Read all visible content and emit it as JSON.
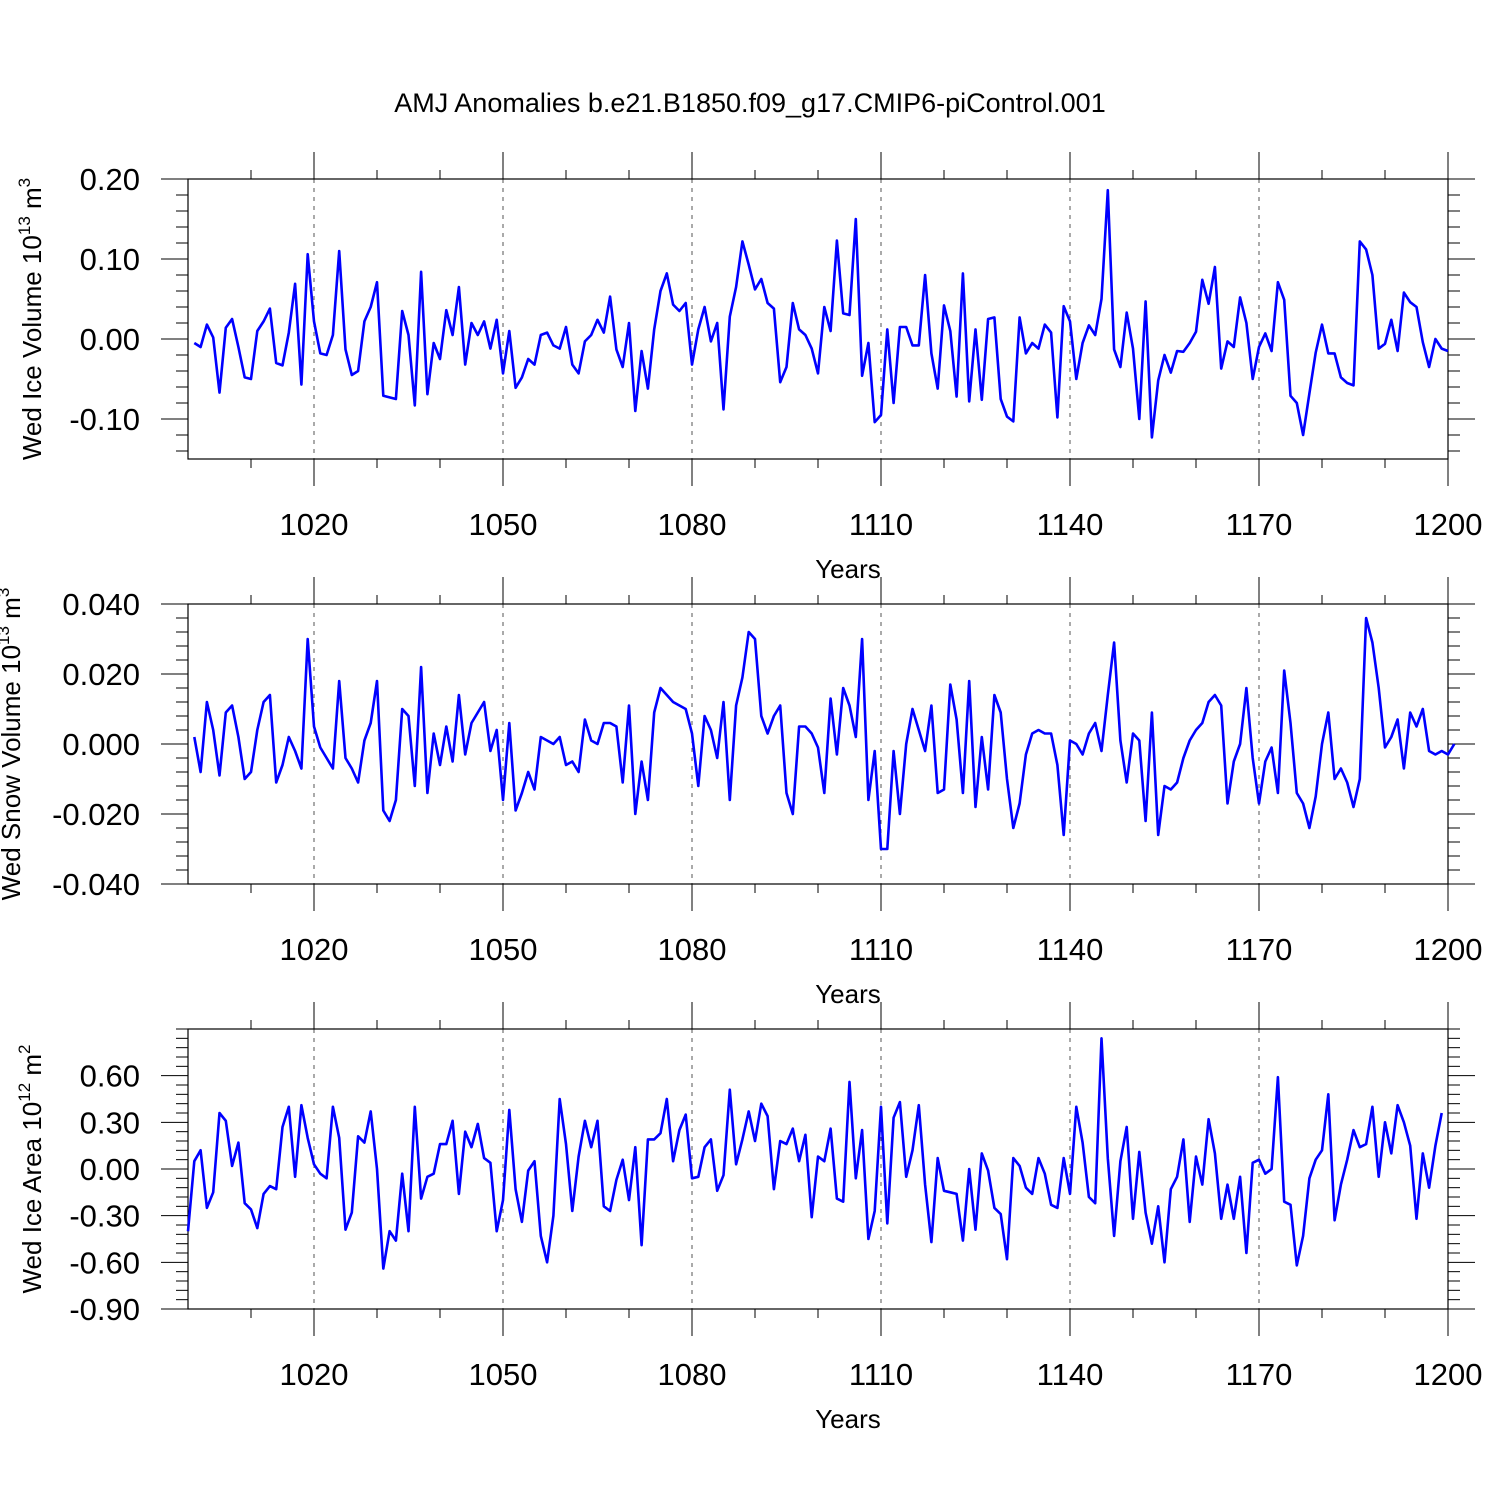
{
  "title": "AMJ Anomalies b.e21.B1850.f09_g17.CMIP6-piControl.001",
  "colors": {
    "line": "#0000ff",
    "axis": "#000000",
    "grid": "#555555"
  },
  "chart_data": [
    {
      "type": "line",
      "ylabel_main": "Wed Ice Volume 10",
      "ylabel_sup": "13",
      "ylabel_unit": " m",
      "ylabel_unit_sup": "3",
      "xlabel": "Years",
      "xlim": [
        1000,
        1200
      ],
      "ylim": [
        -0.15,
        0.2
      ],
      "xticks": [
        1020,
        1050,
        1080,
        1110,
        1140,
        1170,
        1200
      ],
      "xtick_labels": [
        "1020",
        "1050",
        "1080",
        "1110",
        "1140",
        "1170",
        "1200"
      ],
      "yticks": [
        -0.1,
        0.0,
        0.1,
        0.2
      ],
      "ytick_labels": [
        "-0.10",
        "0.00",
        "0.10",
        "0.20"
      ],
      "series": [
        {
          "name": "Wed Ice Volume",
          "x_start": 1001,
          "values": [
            -0.005,
            -0.01,
            0.018,
            0.002,
            -0.067,
            0.014,
            0.025,
            -0.01,
            -0.048,
            -0.05,
            0.01,
            0.022,
            0.038,
            -0.03,
            -0.033,
            0.008,
            0.069,
            -0.057,
            0.106,
            0.022,
            -0.018,
            -0.02,
            0.005,
            0.11,
            -0.013,
            -0.045,
            -0.04,
            0.022,
            0.04,
            0.071,
            -0.071,
            -0.073,
            -0.075,
            0.035,
            0.005,
            -0.083,
            0.084,
            -0.069,
            -0.005,
            -0.025,
            0.036,
            0.005,
            0.065,
            -0.032,
            0.02,
            0.005,
            0.022,
            -0.012,
            0.024,
            -0.043,
            0.01,
            -0.061,
            -0.048,
            -0.025,
            -0.032,
            0.005,
            0.008,
            -0.008,
            -0.012,
            0.015,
            -0.032,
            -0.043,
            -0.003,
            0.005,
            0.024,
            0.008,
            0.053,
            -0.013,
            -0.035,
            0.02,
            -0.09,
            -0.015,
            -0.062,
            0.012,
            0.06,
            0.082,
            0.043,
            0.035,
            0.045,
            -0.032,
            0.012,
            0.04,
            -0.003,
            0.02,
            -0.088,
            0.028,
            0.065,
            0.122,
            0.093,
            0.062,
            0.075,
            0.045,
            0.038,
            -0.054,
            -0.035,
            0.045,
            0.012,
            0.005,
            -0.012,
            -0.043,
            0.04,
            0.01,
            0.123,
            0.032,
            0.03,
            0.15,
            -0.046,
            -0.005,
            -0.104,
            -0.095,
            0.012,
            -0.08,
            0.015,
            0.015,
            -0.008,
            -0.008,
            0.08,
            -0.018,
            -0.062,
            0.042,
            0.01,
            -0.072,
            0.082,
            -0.078,
            0.012,
            -0.076,
            0.025,
            0.027,
            -0.075,
            -0.097,
            -0.103,
            0.027,
            -0.018,
            -0.005,
            -0.012,
            0.018,
            0.008,
            -0.098,
            0.041,
            0.022,
            -0.05,
            -0.005,
            0.017,
            0.005,
            0.05,
            0.186,
            -0.013,
            -0.035,
            0.033,
            -0.012,
            -0.1,
            0.047,
            -0.123,
            -0.052,
            -0.02,
            -0.042,
            -0.015,
            -0.016,
            -0.005,
            0.009,
            0.074,
            0.044,
            0.09,
            -0.037,
            -0.003,
            -0.01,
            0.052,
            0.02,
            -0.05,
            -0.01,
            0.007,
            -0.015,
            0.071,
            0.049,
            -0.071,
            -0.08,
            -0.12,
            -0.068,
            -0.017,
            0.018,
            -0.018,
            -0.018,
            -0.048,
            -0.055,
            -0.058,
            0.122,
            0.112,
            0.08,
            -0.012,
            -0.006,
            0.024,
            -0.015,
            0.058,
            0.046,
            0.04,
            -0.004,
            -0.035,
            0.0,
            -0.012,
            -0.015
          ]
        }
      ]
    },
    {
      "type": "line",
      "ylabel_main": "Wed Snow Volume 10",
      "ylabel_sup": "13",
      "ylabel_unit": " m",
      "ylabel_unit_sup": "3",
      "xlabel": "Years",
      "xlim": [
        1000,
        1200
      ],
      "ylim": [
        -0.04,
        0.04
      ],
      "xticks": [
        1020,
        1050,
        1080,
        1110,
        1140,
        1170,
        1200
      ],
      "xtick_labels": [
        "1020",
        "1050",
        "1080",
        "1110",
        "1140",
        "1170",
        "1200"
      ],
      "yticks": [
        -0.04,
        -0.02,
        0.0,
        0.02,
        0.04
      ],
      "ytick_labels": [
        "-0.040",
        "-0.020",
        "0.000",
        "0.020",
        "0.040"
      ],
      "series": [
        {
          "name": "Wed Snow Volume",
          "x_start": 1001,
          "values": [
            0.002,
            -0.008,
            0.012,
            0.004,
            -0.009,
            0.009,
            0.011,
            0.002,
            -0.01,
            -0.008,
            0.004,
            0.012,
            0.014,
            -0.011,
            -0.006,
            0.002,
            -0.002,
            -0.007,
            0.03,
            0.005,
            -0.001,
            -0.004,
            -0.007,
            0.018,
            -0.004,
            -0.007,
            -0.011,
            0.001,
            0.006,
            0.018,
            -0.019,
            -0.022,
            -0.016,
            0.01,
            0.008,
            -0.012,
            0.022,
            -0.014,
            0.003,
            -0.006,
            0.005,
            -0.005,
            0.014,
            -0.003,
            0.006,
            0.009,
            0.012,
            -0.002,
            0.004,
            -0.016,
            0.006,
            -0.019,
            -0.014,
            -0.008,
            -0.013,
            0.002,
            0.001,
            0.0,
            0.002,
            -0.006,
            -0.005,
            -0.008,
            0.007,
            0.001,
            0.0,
            0.006,
            0.006,
            0.005,
            -0.011,
            0.011,
            -0.02,
            -0.005,
            -0.016,
            0.009,
            0.016,
            0.014,
            0.012,
            0.011,
            0.01,
            0.003,
            -0.012,
            0.008,
            0.004,
            -0.004,
            0.012,
            -0.016,
            0.011,
            0.019,
            0.032,
            0.03,
            0.008,
            0.003,
            0.008,
            0.011,
            -0.014,
            -0.02,
            0.005,
            0.005,
            0.003,
            -0.001,
            -0.014,
            0.013,
            -0.003,
            0.016,
            0.011,
            0.002,
            0.03,
            -0.016,
            -0.002,
            -0.03,
            -0.03,
            -0.002,
            -0.02,
            0.0,
            0.01,
            0.004,
            -0.002,
            0.011,
            -0.014,
            -0.013,
            0.017,
            0.007,
            -0.014,
            0.018,
            -0.018,
            0.002,
            -0.013,
            0.014,
            0.009,
            -0.01,
            -0.024,
            -0.017,
            -0.003,
            0.003,
            0.004,
            0.003,
            0.003,
            -0.006,
            -0.026,
            0.001,
            0.0,
            -0.003,
            0.003,
            0.006,
            -0.002,
            0.014,
            0.029,
            0.001,
            -0.011,
            0.003,
            0.001,
            -0.022,
            0.009,
            -0.026,
            -0.012,
            -0.013,
            -0.011,
            -0.004,
            0.001,
            0.004,
            0.006,
            0.012,
            0.014,
            0.011,
            -0.017,
            -0.005,
            0.0,
            0.016,
            -0.004,
            -0.017,
            -0.005,
            -0.001,
            -0.014,
            0.021,
            0.006,
            -0.014,
            -0.017,
            -0.024,
            -0.015,
            0.0,
            0.009,
            -0.01,
            -0.007,
            -0.011,
            -0.018,
            -0.01,
            0.036,
            0.029,
            0.016,
            -0.001,
            0.002,
            0.007,
            -0.007,
            0.009,
            0.005,
            0.01,
            -0.002,
            -0.003,
            -0.002,
            -0.003,
            0.0
          ]
        }
      ]
    },
    {
      "type": "line",
      "ylabel_main": "Wed Ice Area 10",
      "ylabel_sup": "12",
      "ylabel_unit": " m",
      "ylabel_unit_sup": "2",
      "xlabel": "Years",
      "xlim": [
        1000,
        1200
      ],
      "ylim": [
        -0.9,
        0.9
      ],
      "xticks": [
        1020,
        1050,
        1080,
        1110,
        1140,
        1170,
        1200
      ],
      "xtick_labels": [
        "1020",
        "1050",
        "1080",
        "1110",
        "1140",
        "1170",
        "1200"
      ],
      "yticks": [
        -0.9,
        -0.6,
        -0.3,
        0.0,
        0.3,
        0.6
      ],
      "ytick_labels": [
        "-0.90",
        "-0.60",
        "-0.30",
        "0.00",
        "0.30",
        "0.60"
      ],
      "series": [
        {
          "name": "Wed Ice Area",
          "x_start": 1000,
          "values": [
            -0.4,
            0.05,
            0.12,
            -0.25,
            -0.15,
            0.36,
            0.31,
            0.02,
            0.17,
            -0.22,
            -0.26,
            -0.38,
            -0.16,
            -0.11,
            -0.13,
            0.27,
            0.4,
            -0.05,
            0.41,
            0.2,
            0.03,
            -0.03,
            -0.06,
            0.4,
            0.2,
            -0.39,
            -0.28,
            0.21,
            0.17,
            0.37,
            0.0,
            -0.64,
            -0.4,
            -0.46,
            -0.03,
            -0.4,
            0.4,
            -0.19,
            -0.05,
            -0.03,
            0.16,
            0.16,
            0.31,
            -0.16,
            0.24,
            0.14,
            0.29,
            0.07,
            0.04,
            -0.4,
            -0.2,
            0.38,
            -0.13,
            -0.34,
            -0.01,
            0.05,
            -0.43,
            -0.6,
            -0.3,
            0.45,
            0.16,
            -0.27,
            0.08,
            0.31,
            0.14,
            0.31,
            -0.24,
            -0.27,
            -0.07,
            0.06,
            -0.2,
            0.14,
            -0.49,
            0.19,
            0.19,
            0.23,
            0.45,
            0.05,
            0.25,
            0.35,
            -0.06,
            -0.05,
            0.14,
            0.19,
            -0.14,
            -0.04,
            0.51,
            0.03,
            0.19,
            0.37,
            0.18,
            0.42,
            0.34,
            -0.13,
            0.18,
            0.16,
            0.26,
            0.05,
            0.22,
            -0.31,
            0.08,
            0.05,
            0.26,
            -0.19,
            -0.21,
            0.56,
            -0.06,
            0.25,
            -0.45,
            -0.27,
            0.4,
            -0.35,
            0.33,
            0.43,
            -0.05,
            0.12,
            0.41,
            -0.1,
            -0.47,
            0.07,
            -0.14,
            -0.15,
            -0.16,
            -0.46,
            0.0,
            -0.39,
            0.1,
            -0.01,
            -0.25,
            -0.29,
            -0.58,
            0.07,
            0.02,
            -0.12,
            -0.16,
            0.07,
            -0.03,
            -0.23,
            -0.25,
            0.07,
            -0.16,
            0.4,
            0.17,
            -0.18,
            -0.22,
            0.84,
            0.07,
            -0.43,
            0.05,
            0.27,
            -0.32,
            0.11,
            -0.28,
            -0.48,
            -0.24,
            -0.6,
            -0.13,
            -0.05,
            0.19,
            -0.34,
            0.08,
            -0.1,
            0.32,
            0.1,
            -0.32,
            -0.1,
            -0.32,
            -0.05,
            -0.54,
            0.04,
            0.06,
            -0.03,
            0.0,
            0.59,
            -0.21,
            -0.23,
            -0.62,
            -0.43,
            -0.06,
            0.06,
            0.12,
            0.48,
            -0.33,
            -0.1,
            0.06,
            0.25,
            0.14,
            0.16,
            0.4,
            -0.05,
            0.3,
            0.1,
            0.41,
            0.3,
            0.15,
            -0.32,
            0.1,
            -0.12,
            0.15,
            0.36
          ]
        }
      ]
    }
  ]
}
